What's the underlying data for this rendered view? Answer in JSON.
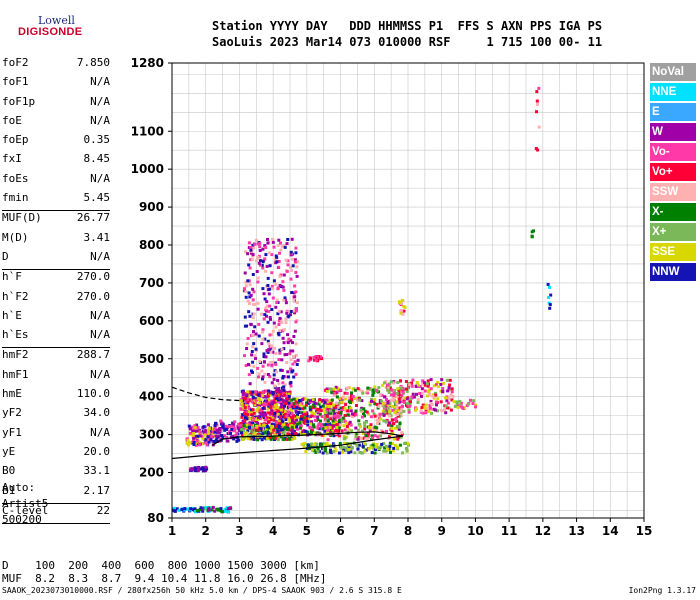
{
  "logo": {
    "line1": "Lowell",
    "line2": "DIGISONDE"
  },
  "header": {
    "row1": "Station YYYY DAY   DDD HHMMSS P1  FFS S AXN PPS IGA PS",
    "row2": "SaoLuis 2023 Mar14 073 010000 RSF     1 715 100 00- 11"
  },
  "params": {
    "groups": [
      [
        {
          "k": "foF2",
          "v": "7.850"
        },
        {
          "k": "foF1",
          "v": "N/A"
        },
        {
          "k": "foF1p",
          "v": "N/A"
        },
        {
          "k": "foE",
          "v": "N/A"
        },
        {
          "k": "foEp",
          "v": "0.35"
        },
        {
          "k": "fxI",
          "v": "8.45"
        },
        {
          "k": "foEs",
          "v": "N/A"
        },
        {
          "k": "fmin",
          "v": "5.45"
        }
      ],
      [
        {
          "k": "MUF(D)",
          "v": "26.77"
        },
        {
          "k": "M(D)",
          "v": "3.41"
        },
        {
          "k": "D",
          "v": "N/A"
        }
      ],
      [
        {
          "k": "h`F",
          "v": "270.0"
        },
        {
          "k": "h`F2",
          "v": "270.0"
        },
        {
          "k": "h`E",
          "v": "N/A"
        },
        {
          "k": "h`Es",
          "v": "N/A"
        }
      ],
      [
        {
          "k": "hmF2",
          "v": "288.7"
        },
        {
          "k": "hmF1",
          "v": "N/A"
        },
        {
          "k": "hmE",
          "v": "110.0"
        },
        {
          "k": "yF2",
          "v": "34.0"
        },
        {
          "k": "yF1",
          "v": "N/A"
        },
        {
          "k": "yE",
          "v": "20.0"
        },
        {
          "k": "B0",
          "v": "33.1"
        },
        {
          "k": "B1",
          "v": "2.17"
        }
      ],
      [
        {
          "k": "C-level",
          "v": "22"
        }
      ]
    ]
  },
  "auto": {
    "line1": "Auto:",
    "line2": "Artist5",
    "line3": "500200"
  },
  "legend": [
    {
      "label": "NoVal",
      "color": "#a0a0a0"
    },
    {
      "label": "NNE",
      "color": "#00e0ff"
    },
    {
      "label": "E",
      "color": "#3aa8ff"
    },
    {
      "label": "W",
      "color": "#a000a8"
    },
    {
      "label": "Vo-",
      "color": "#ff3aa8"
    },
    {
      "label": "Vo+",
      "color": "#ff0036"
    },
    {
      "label": "SSW",
      "color": "#ffb0b0"
    },
    {
      "label": "X-",
      "color": "#008000"
    },
    {
      "label": "X+",
      "color": "#7ab85a"
    },
    {
      "label": "SSE",
      "color": "#d8d800"
    },
    {
      "label": "NNW",
      "color": "#1414b4"
    }
  ],
  "dmuf": {
    "row1": "D    100  200  400  600  800 1000 1500 3000 [km]",
    "row2": "MUF  8.2  8.3  8.7  9.4 10.4 11.8 16.0 26.8 [MHz]"
  },
  "footer": "SAAOK_2023073010000.RSF / 280fx256h 50 kHz 5.0 km / DPS-4 SAAOK 903 / 2.6 S 315.8 E",
  "version": "Ion2Png 1.3.17",
  "chart_data": {
    "type": "scatter",
    "xlim": [
      1,
      15
    ],
    "ylim": [
      80,
      1280
    ],
    "xticks": [
      "1",
      "2",
      "3",
      "4",
      "5",
      "6",
      "7",
      "8",
      "9",
      "10",
      "11",
      "12",
      "13",
      "14",
      "15"
    ],
    "yticks": [
      {
        "v": 80,
        "label": "80"
      },
      {
        "v": 200,
        "label": "200"
      },
      {
        "v": 300,
        "label": "300"
      },
      {
        "v": 400,
        "label": "400"
      },
      {
        "v": 500,
        "label": "500"
      },
      {
        "v": 600,
        "label": "600"
      },
      {
        "v": 700,
        "label": "700"
      },
      {
        "v": 800,
        "label": "800"
      },
      {
        "v": 900,
        "label": "900"
      },
      {
        "v": 1000,
        "label": "1000"
      },
      {
        "v": 1100,
        "label": "1100"
      },
      {
        "v": 1280,
        "label": "1280"
      }
    ],
    "grid": true,
    "scatter_regions": [
      {
        "x0": 1.4,
        "x1": 2.2,
        "y0": 275,
        "y1": 330,
        "n": 120,
        "colors": [
          "#1414b4",
          "#a000a8",
          "#ff3aa8",
          "#d8d800"
        ]
      },
      {
        "x0": 1.5,
        "x1": 2.0,
        "y0": 208,
        "y1": 218,
        "n": 30,
        "colors": [
          "#1414b4",
          "#a000a8"
        ]
      },
      {
        "x0": 1.0,
        "x1": 1.8,
        "y0": 100,
        "y1": 110,
        "n": 30,
        "colors": [
          "#1414b4",
          "#00e0ff"
        ]
      },
      {
        "x0": 1.7,
        "x1": 2.7,
        "y0": 100,
        "y1": 112,
        "n": 40,
        "colors": [
          "#1414b4",
          "#008000",
          "#00e0ff",
          "#a000a8"
        ]
      },
      {
        "x0": 2.2,
        "x1": 3.0,
        "y0": 285,
        "y1": 340,
        "n": 80,
        "colors": [
          "#1414b4",
          "#a000a8",
          "#ff3aa8"
        ]
      },
      {
        "x0": 3.0,
        "x1": 4.5,
        "y0": 320,
        "y1": 420,
        "n": 520,
        "colors": [
          "#a000a8",
          "#ff3aa8",
          "#ff0036",
          "#1414b4",
          "#d8d800"
        ]
      },
      {
        "x0": 3.1,
        "x1": 4.7,
        "y0": 420,
        "y1": 820,
        "n": 360,
        "colors": [
          "#a000a8",
          "#1414b4",
          "#ff3aa8",
          "#ffb0b0"
        ]
      },
      {
        "x0": 3.0,
        "x1": 4.6,
        "y0": 290,
        "y1": 330,
        "n": 200,
        "colors": [
          "#d8d800",
          "#008000",
          "#7ab85a",
          "#ff0036",
          "#1414b4"
        ]
      },
      {
        "x0": 4.5,
        "x1": 6.0,
        "y0": 300,
        "y1": 400,
        "n": 320,
        "colors": [
          "#a000a8",
          "#ff3aa8",
          "#d8d800",
          "#008000",
          "#1414b4",
          "#ff0036"
        ]
      },
      {
        "x0": 5.5,
        "x1": 7.8,
        "y0": 290,
        "y1": 430,
        "n": 380,
        "colors": [
          "#d8d800",
          "#ff0036",
          "#7ab85a",
          "#a000a8",
          "#ff3aa8",
          "#008000",
          "#ffb0b0"
        ]
      },
      {
        "x0": 7.2,
        "x1": 9.3,
        "y0": 360,
        "y1": 450,
        "n": 220,
        "colors": [
          "#ff3aa8",
          "#ffb0b0",
          "#d8d800",
          "#7ab85a",
          "#a000a8",
          "#ff0036"
        ]
      },
      {
        "x0": 9.0,
        "x1": 10.0,
        "y0": 372,
        "y1": 395,
        "n": 25,
        "colors": [
          "#7ab85a",
          "#d8d800",
          "#ff3aa8"
        ]
      },
      {
        "x0": 4.8,
        "x1": 8.0,
        "y0": 255,
        "y1": 282,
        "n": 160,
        "colors": [
          "#008000",
          "#7ab85a",
          "#d8d800",
          "#1414b4"
        ]
      },
      {
        "x0": 5.0,
        "x1": 5.4,
        "y0": 498,
        "y1": 510,
        "n": 22,
        "colors": [
          "#ff0036",
          "#ff3aa8"
        ]
      },
      {
        "x0": 7.7,
        "x1": 7.9,
        "y0": 620,
        "y1": 660,
        "n": 14,
        "colors": [
          "#ff0036",
          "#ffb0b0",
          "#d8d800"
        ]
      },
      {
        "x0": 11.6,
        "x1": 11.7,
        "y0": 825,
        "y1": 850,
        "n": 4,
        "colors": [
          "#ff0036",
          "#008000"
        ]
      },
      {
        "x0": 11.75,
        "x1": 11.85,
        "y0": 1020,
        "y1": 1220,
        "n": 8,
        "colors": [
          "#ff3aa8",
          "#ffb0b0",
          "#ff0036"
        ]
      },
      {
        "x0": 12.1,
        "x1": 12.2,
        "y0": 620,
        "y1": 720,
        "n": 7,
        "colors": [
          "#00e0ff",
          "#1414b4"
        ]
      }
    ],
    "lines": [
      {
        "name": "",
        "color": "#000000",
        "dash": false,
        "points": [
          [
            1,
            237
          ],
          [
            2,
            245
          ],
          [
            3,
            252
          ],
          [
            4,
            258
          ],
          [
            5,
            264
          ],
          [
            5.5,
            268
          ],
          [
            6,
            272
          ],
          [
            6.5,
            279
          ],
          [
            7,
            286
          ],
          [
            7.5,
            292
          ],
          [
            7.85,
            296
          ]
        ]
      },
      {
        "name": "",
        "color": "#000000",
        "dash": false,
        "points": [
          [
            7.85,
            296
          ],
          [
            7.5,
            302
          ],
          [
            7,
            307
          ],
          [
            6.5,
            306
          ],
          [
            6,
            303
          ],
          [
            5,
            299
          ],
          [
            4,
            296
          ],
          [
            3,
            294
          ],
          [
            2.5,
            288
          ],
          [
            2.2,
            272
          ]
        ]
      },
      {
        "name": "",
        "color": "#000000",
        "dash": true,
        "points": [
          [
            1,
            425
          ],
          [
            1.5,
            410
          ],
          [
            2,
            398
          ],
          [
            2.5,
            392
          ],
          [
            3,
            390
          ]
        ]
      }
    ]
  }
}
